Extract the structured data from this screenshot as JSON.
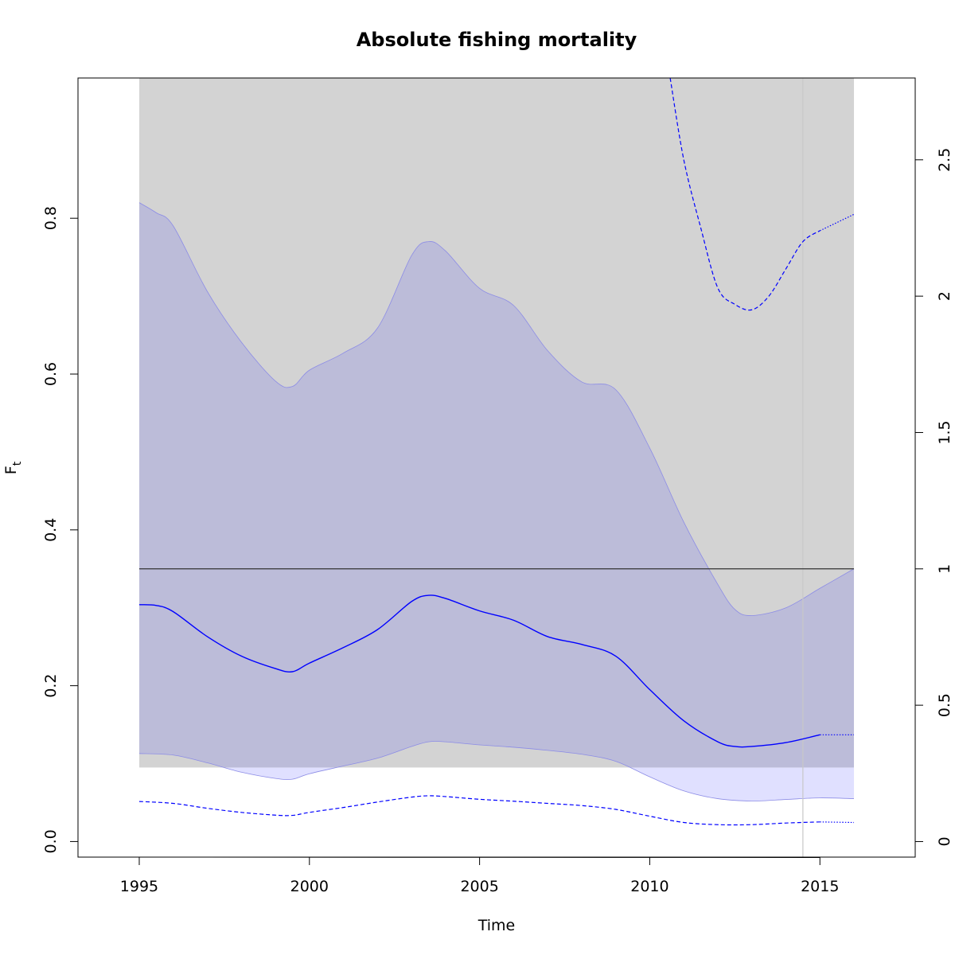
{
  "chart_data": {
    "type": "line",
    "title": "Absolute fishing mortality",
    "xlabel": "Time",
    "ylabel_main": "F",
    "ylabel_sub": "t",
    "xlim": [
      1993.2,
      2017.8
    ],
    "ylim_left": [
      -0.02,
      0.98
    ],
    "ylim_right": [
      -0.057,
      2.8
    ],
    "x_ticks": [
      1995,
      2000,
      2005,
      2010,
      2015
    ],
    "x_tick_labels": [
      "1995",
      "2000",
      "2005",
      "2010",
      "2015"
    ],
    "y_left_ticks": [
      0.0,
      0.2,
      0.4,
      0.6,
      0.8
    ],
    "y_left_tick_labels": [
      "0.0",
      "0.2",
      "0.4",
      "0.6",
      "0.8"
    ],
    "y_right_ticks": [
      0,
      0.5,
      1,
      1.5,
      2,
      2.5
    ],
    "y_right_tick_labels": [
      "0",
      "0.5",
      "1",
      "1.5",
      "2",
      "2.5"
    ],
    "grid": false,
    "colors": {
      "gray_region": "#d3d3d3",
      "ci_band": "#bcbcd9",
      "ci_band_below": "#e0e0ff",
      "ci_edge": "#8c8ce6",
      "estimate": "#0000ff",
      "reference": "#333333",
      "vline": "#c8c8c8"
    },
    "gray_region": {
      "x_range": [
        1995,
        2016
      ],
      "y_range": [
        0.095,
        0.98
      ]
    },
    "reference_line_y": 0.35,
    "vertical_line_x": 2014.5,
    "series": [
      {
        "role": "estimate",
        "style": "solid",
        "x": [
          1995,
          1995.5,
          1996,
          1997,
          1998,
          1999,
          1999.5,
          2000,
          2001,
          2002,
          2003,
          2003.5,
          2004,
          2005,
          2006,
          2007,
          2008,
          2009,
          2010,
          2011,
          2012,
          2012.5,
          2013,
          2014,
          2015
        ],
        "y": [
          0.304,
          0.303,
          0.295,
          0.263,
          0.238,
          0.222,
          0.218,
          0.229,
          0.249,
          0.272,
          0.308,
          0.316,
          0.312,
          0.296,
          0.284,
          0.263,
          0.253,
          0.238,
          0.195,
          0.155,
          0.128,
          0.122,
          0.122,
          0.127,
          0.137
        ]
      },
      {
        "role": "estimate-forecast",
        "style": "dotted",
        "x": [
          2015,
          2016
        ],
        "y": [
          0.137,
          0.137
        ]
      },
      {
        "role": "ci-upper",
        "x": [
          1995,
          1995.5,
          1996,
          1997,
          1998,
          1999,
          1999.5,
          2000,
          2001,
          2002,
          2003,
          2003.5,
          2004,
          2005,
          2006,
          2007,
          2008,
          2009,
          2010,
          2011,
          2012,
          2012.5,
          2013,
          2014,
          2015,
          2016
        ],
        "y": [
          0.82,
          0.807,
          0.79,
          0.706,
          0.641,
          0.591,
          0.584,
          0.605,
          0.627,
          0.659,
          0.752,
          0.77,
          0.758,
          0.71,
          0.688,
          0.63,
          0.59,
          0.58,
          0.505,
          0.41,
          0.33,
          0.298,
          0.29,
          0.3,
          0.325,
          0.35
        ]
      },
      {
        "role": "ci-lower",
        "x": [
          1995,
          1996,
          1997,
          1998,
          1999,
          1999.5,
          2000,
          2001,
          2002,
          2003,
          2003.5,
          2004,
          2005,
          2006,
          2007,
          2008,
          2009,
          2010,
          2011,
          2012,
          2013,
          2014,
          2015,
          2016
        ],
        "y": [
          0.113,
          0.111,
          0.101,
          0.089,
          0.081,
          0.08,
          0.087,
          0.097,
          0.107,
          0.122,
          0.128,
          0.128,
          0.124,
          0.121,
          0.117,
          0.112,
          0.103,
          0.083,
          0.065,
          0.055,
          0.052,
          0.054,
          0.056,
          0.055
        ]
      },
      {
        "role": "relative-lower",
        "axis": "right",
        "style": "dashed",
        "x": [
          1995,
          1996,
          1997,
          1998,
          1999,
          1999.5,
          2000,
          2001,
          2002,
          2003,
          2003.5,
          2004,
          2005,
          2006,
          2007,
          2008,
          2009,
          2010,
          2011,
          2012,
          2013,
          2014,
          2015
        ],
        "y": [
          0.147,
          0.14,
          0.122,
          0.107,
          0.097,
          0.096,
          0.107,
          0.125,
          0.145,
          0.163,
          0.168,
          0.165,
          0.155,
          0.148,
          0.14,
          0.132,
          0.118,
          0.093,
          0.07,
          0.062,
          0.062,
          0.068,
          0.072
        ]
      },
      {
        "role": "relative-lower-forecast",
        "axis": "right",
        "style": "dotted",
        "x": [
          2015,
          2016
        ],
        "y": [
          0.072,
          0.07
        ]
      },
      {
        "role": "relative-upper",
        "axis": "right",
        "style": "dashed",
        "x": [
          2010.6,
          2011,
          2011.5,
          2012,
          2012.5,
          2013,
          2013.5,
          2014,
          2014.5,
          2015
        ],
        "y": [
          2.8,
          2.5,
          2.25,
          2.03,
          1.97,
          1.95,
          2.0,
          2.1,
          2.2,
          2.24
        ]
      },
      {
        "role": "relative-upper-forecast",
        "axis": "right",
        "style": "dotted",
        "x": [
          2015,
          2016
        ],
        "y": [
          2.24,
          2.3
        ]
      }
    ]
  }
}
